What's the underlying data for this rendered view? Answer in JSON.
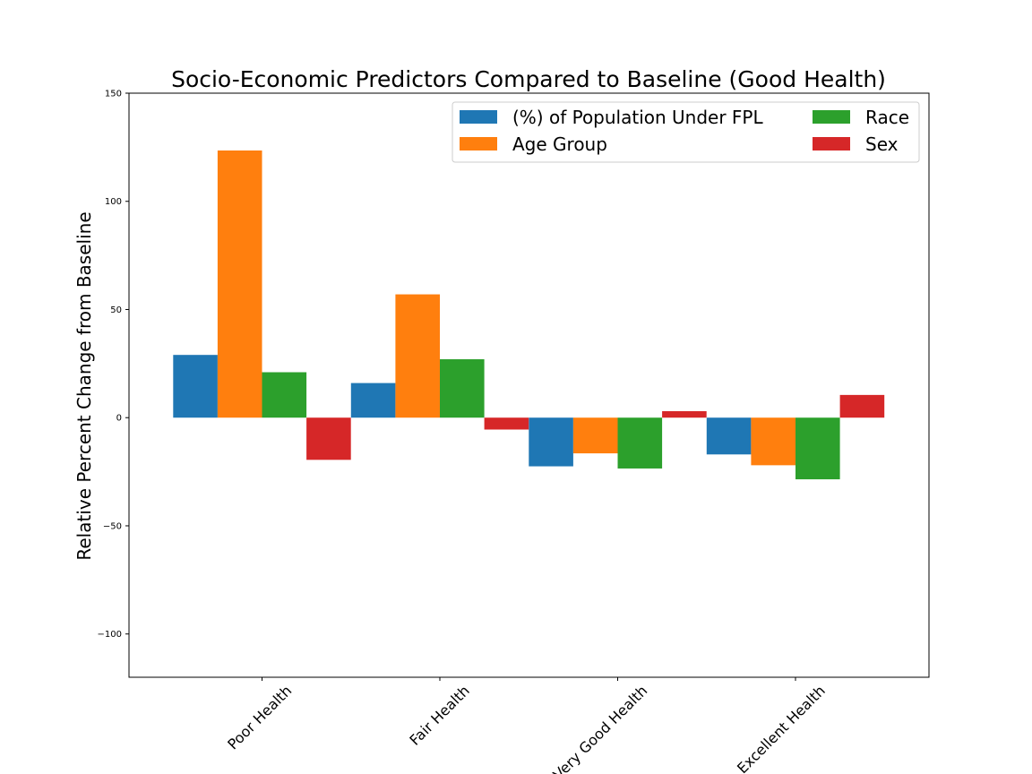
{
  "chart_data": {
    "type": "bar",
    "title": "Socio-Economic Predictors Compared to Baseline (Good Health)",
    "xlabel": "",
    "ylabel": "Relative Percent Change from Baseline",
    "ylim": [
      -120,
      150
    ],
    "yticks": [
      150,
      100,
      50,
      0,
      -50,
      -100
    ],
    "ytick_labels": [
      "150",
      "100",
      "50",
      "0",
      "−50",
      "−100"
    ],
    "categories": [
      "Poor Health",
      "Fair Health",
      "Very Good Health",
      "Excellent Health"
    ],
    "series": [
      {
        "name": "(%) of Population Under FPL",
        "color": "#1f77b4",
        "values": [
          29,
          16,
          -22.5,
          -17
        ]
      },
      {
        "name": "Age Group",
        "color": "#ff7f0e",
        "values": [
          123.5,
          57,
          -16.5,
          -22
        ]
      },
      {
        "name": "Race",
        "color": "#2ca02c",
        "values": [
          21,
          27,
          -23.5,
          -28.5
        ]
      },
      {
        "name": "Sex",
        "color": "#d62728",
        "values": [
          -19.5,
          -5.5,
          3,
          10.5
        ]
      }
    ],
    "legend_location": "upper right",
    "grid": false
  }
}
